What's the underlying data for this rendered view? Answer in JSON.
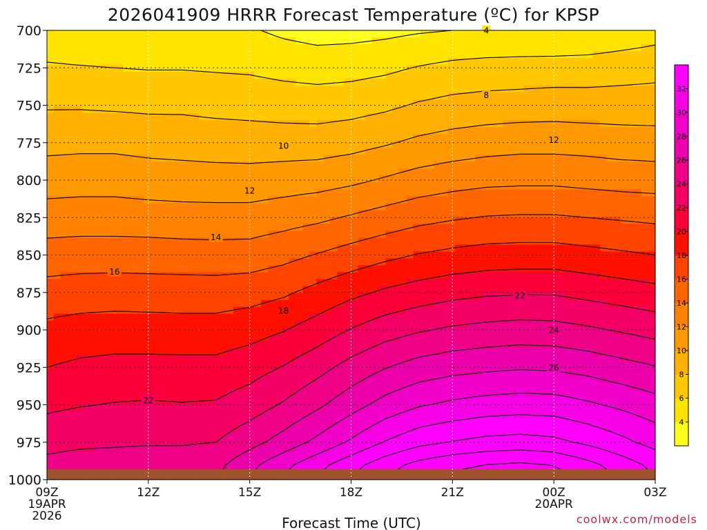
{
  "chart_data": {
    "type": "heatmap",
    "title": "2026041909 HRRR Forecast Temperature (ºC) for KPSP",
    "xlabel": "Forecast Time (UTC)",
    "ylabel": "",
    "credit": "coolwx.com/models",
    "y_axis": {
      "quantity": "pressure (hPa)",
      "reversed": true,
      "range": [
        700,
        1000
      ],
      "ticks": [
        700,
        725,
        750,
        775,
        800,
        825,
        850,
        875,
        900,
        925,
        950,
        975,
        1000
      ],
      "tick_labels": [
        "700",
        "725",
        "750",
        "775",
        "800",
        "825",
        "850",
        "875",
        "900",
        "925",
        "950",
        "975",
        "1000"
      ]
    },
    "x_axis": {
      "range": [
        0,
        18
      ],
      "ticks": [
        0,
        3,
        6,
        9,
        12,
        15,
        18
      ],
      "tick_labels": [
        [
          "09Z",
          "19APR",
          "2026"
        ],
        [
          "12Z"
        ],
        [
          "15Z"
        ],
        [
          "18Z"
        ],
        [
          "21Z"
        ],
        [
          "00Z",
          "20APR"
        ],
        [
          "03Z"
        ]
      ]
    },
    "grid": true,
    "x": [
      0,
      1,
      2,
      3,
      4,
      5,
      6,
      7,
      8,
      9,
      10,
      11,
      12,
      13,
      14,
      15,
      16,
      17,
      18
    ],
    "levels": [
      700,
      725,
      750,
      775,
      800,
      825,
      850,
      875,
      900,
      925,
      950,
      975,
      990
    ],
    "values": [
      [
        4.9,
        4.6,
        4.4,
        4.4,
        4.4,
        4.4,
        4.2,
        3.6,
        3.2,
        3.3,
        3.5,
        3.8,
        4.0,
        4.1,
        4.1,
        4.0,
        4.1,
        4.6,
        5.1
      ],
      [
        6.2,
        6.1,
        6.0,
        5.9,
        5.9,
        5.8,
        5.7,
        5.4,
        5.2,
        5.3,
        5.6,
        6.1,
        6.5,
        6.7,
        6.8,
        6.9,
        7.0,
        7.2,
        7.4
      ],
      [
        7.8,
        7.8,
        7.7,
        7.6,
        7.6,
        7.4,
        7.3,
        7.1,
        7.0,
        7.2,
        7.6,
        8.2,
        8.6,
        8.8,
        8.9,
        9.0,
        8.9,
        8.9,
        8.9
      ],
      [
        9.4,
        9.5,
        9.5,
        9.3,
        9.2,
        9.1,
        9.0,
        9.0,
        9.0,
        9.3,
        9.8,
        10.4,
        10.8,
        11.1,
        11.3,
        11.3,
        11.2,
        11.0,
        10.9
      ],
      [
        11.1,
        11.2,
        11.2,
        11.0,
        10.9,
        10.8,
        10.8,
        11.0,
        11.2,
        11.6,
        12.2,
        12.8,
        13.2,
        13.5,
        13.6,
        13.6,
        13.4,
        13.2,
        13.1
      ],
      [
        12.9,
        13.0,
        13.0,
        12.9,
        12.8,
        12.8,
        12.8,
        13.2,
        13.6,
        14.2,
        14.8,
        15.4,
        15.8,
        16.1,
        16.2,
        16.2,
        16.0,
        15.8,
        15.6
      ],
      [
        14.9,
        15.0,
        15.0,
        15.0,
        14.9,
        14.8,
        14.9,
        15.4,
        16.1,
        16.8,
        17.5,
        18.1,
        18.5,
        18.8,
        18.9,
        18.9,
        18.6,
        18.3,
        18.0
      ],
      [
        16.8,
        17.0,
        17.1,
        17.0,
        17.0,
        17.0,
        17.2,
        17.7,
        18.6,
        19.5,
        20.3,
        20.9,
        21.4,
        21.7,
        21.8,
        21.8,
        21.4,
        21.0,
        20.6
      ],
      [
        18.5,
        18.8,
        18.9,
        18.9,
        18.8,
        18.8,
        19.2,
        19.9,
        20.9,
        22.1,
        23.1,
        23.8,
        24.3,
        24.6,
        24.8,
        24.7,
        24.3,
        23.8,
        23.3
      ],
      [
        20.0,
        20.4,
        20.6,
        20.6,
        20.6,
        20.6,
        21.2,
        22.1,
        23.3,
        24.7,
        25.9,
        26.8,
        27.3,
        27.6,
        27.8,
        27.7,
        27.3,
        26.7,
        26.1
      ],
      [
        21.6,
        21.9,
        22.1,
        22.2,
        22.1,
        22.2,
        23.0,
        24.2,
        25.6,
        27.2,
        28.7,
        29.8,
        30.4,
        30.8,
        31.0,
        30.9,
        30.3,
        29.6,
        28.8
      ],
      [
        23.3,
        23.6,
        23.7,
        23.8,
        23.8,
        24.0,
        25.3,
        26.8,
        28.5,
        30.3,
        32.1,
        33.4,
        34.1,
        34.6,
        34.8,
        34.5,
        33.6,
        32.5,
        31.3
      ],
      [
        24.6,
        24.9,
        25.0,
        25.1,
        25.1,
        25.4,
        27.4,
        29.4,
        31.3,
        33.2,
        35.1,
        36.6,
        37.5,
        38.0,
        38.3,
        37.9,
        36.6,
        35.0,
        33.4
      ]
    ],
    "contour_interval": 2,
    "contour_labels": [
      {
        "value": "4",
        "x": 13.0,
        "y": 700
      },
      {
        "value": "8",
        "x": 13.0,
        "y": 743
      },
      {
        "value": "10",
        "x": 7.0,
        "y": 777
      },
      {
        "value": "12",
        "x": 6.0,
        "y": 807
      },
      {
        "value": "12",
        "x": 15.0,
        "y": 773
      },
      {
        "value": "14",
        "x": 5.0,
        "y": 838
      },
      {
        "value": "16",
        "x": 2.0,
        "y": 861
      },
      {
        "value": "18",
        "x": 7.0,
        "y": 887
      },
      {
        "value": "22",
        "x": 3.0,
        "y": 947
      },
      {
        "value": "22",
        "x": 14.0,
        "y": 877
      },
      {
        "value": "24",
        "x": 15.0,
        "y": 900
      },
      {
        "value": "26",
        "x": 15.0,
        "y": 925
      }
    ],
    "colorbar": {
      "ticks": [
        4,
        6,
        8,
        10,
        12,
        14,
        16,
        18,
        20,
        22,
        24,
        26,
        28,
        30,
        32
      ],
      "bins": [
        2,
        4,
        6,
        8,
        10,
        12,
        14,
        16,
        18,
        20,
        22,
        24,
        26,
        28,
        30,
        32,
        34
      ],
      "colors": [
        "#ffff1e",
        "#ffe400",
        "#ffc800",
        "#ffb000",
        "#ff9900",
        "#ff8200",
        "#ff6600",
        "#ff4400",
        "#ff1100",
        "#fb0038",
        "#f40064",
        "#ee0087",
        "#ec00aa",
        "#f000c8",
        "#f600e6",
        "#ff00ff"
      ]
    },
    "terrain": {
      "label": "",
      "color": "#a0522d",
      "surface_pressure": 993
    }
  }
}
